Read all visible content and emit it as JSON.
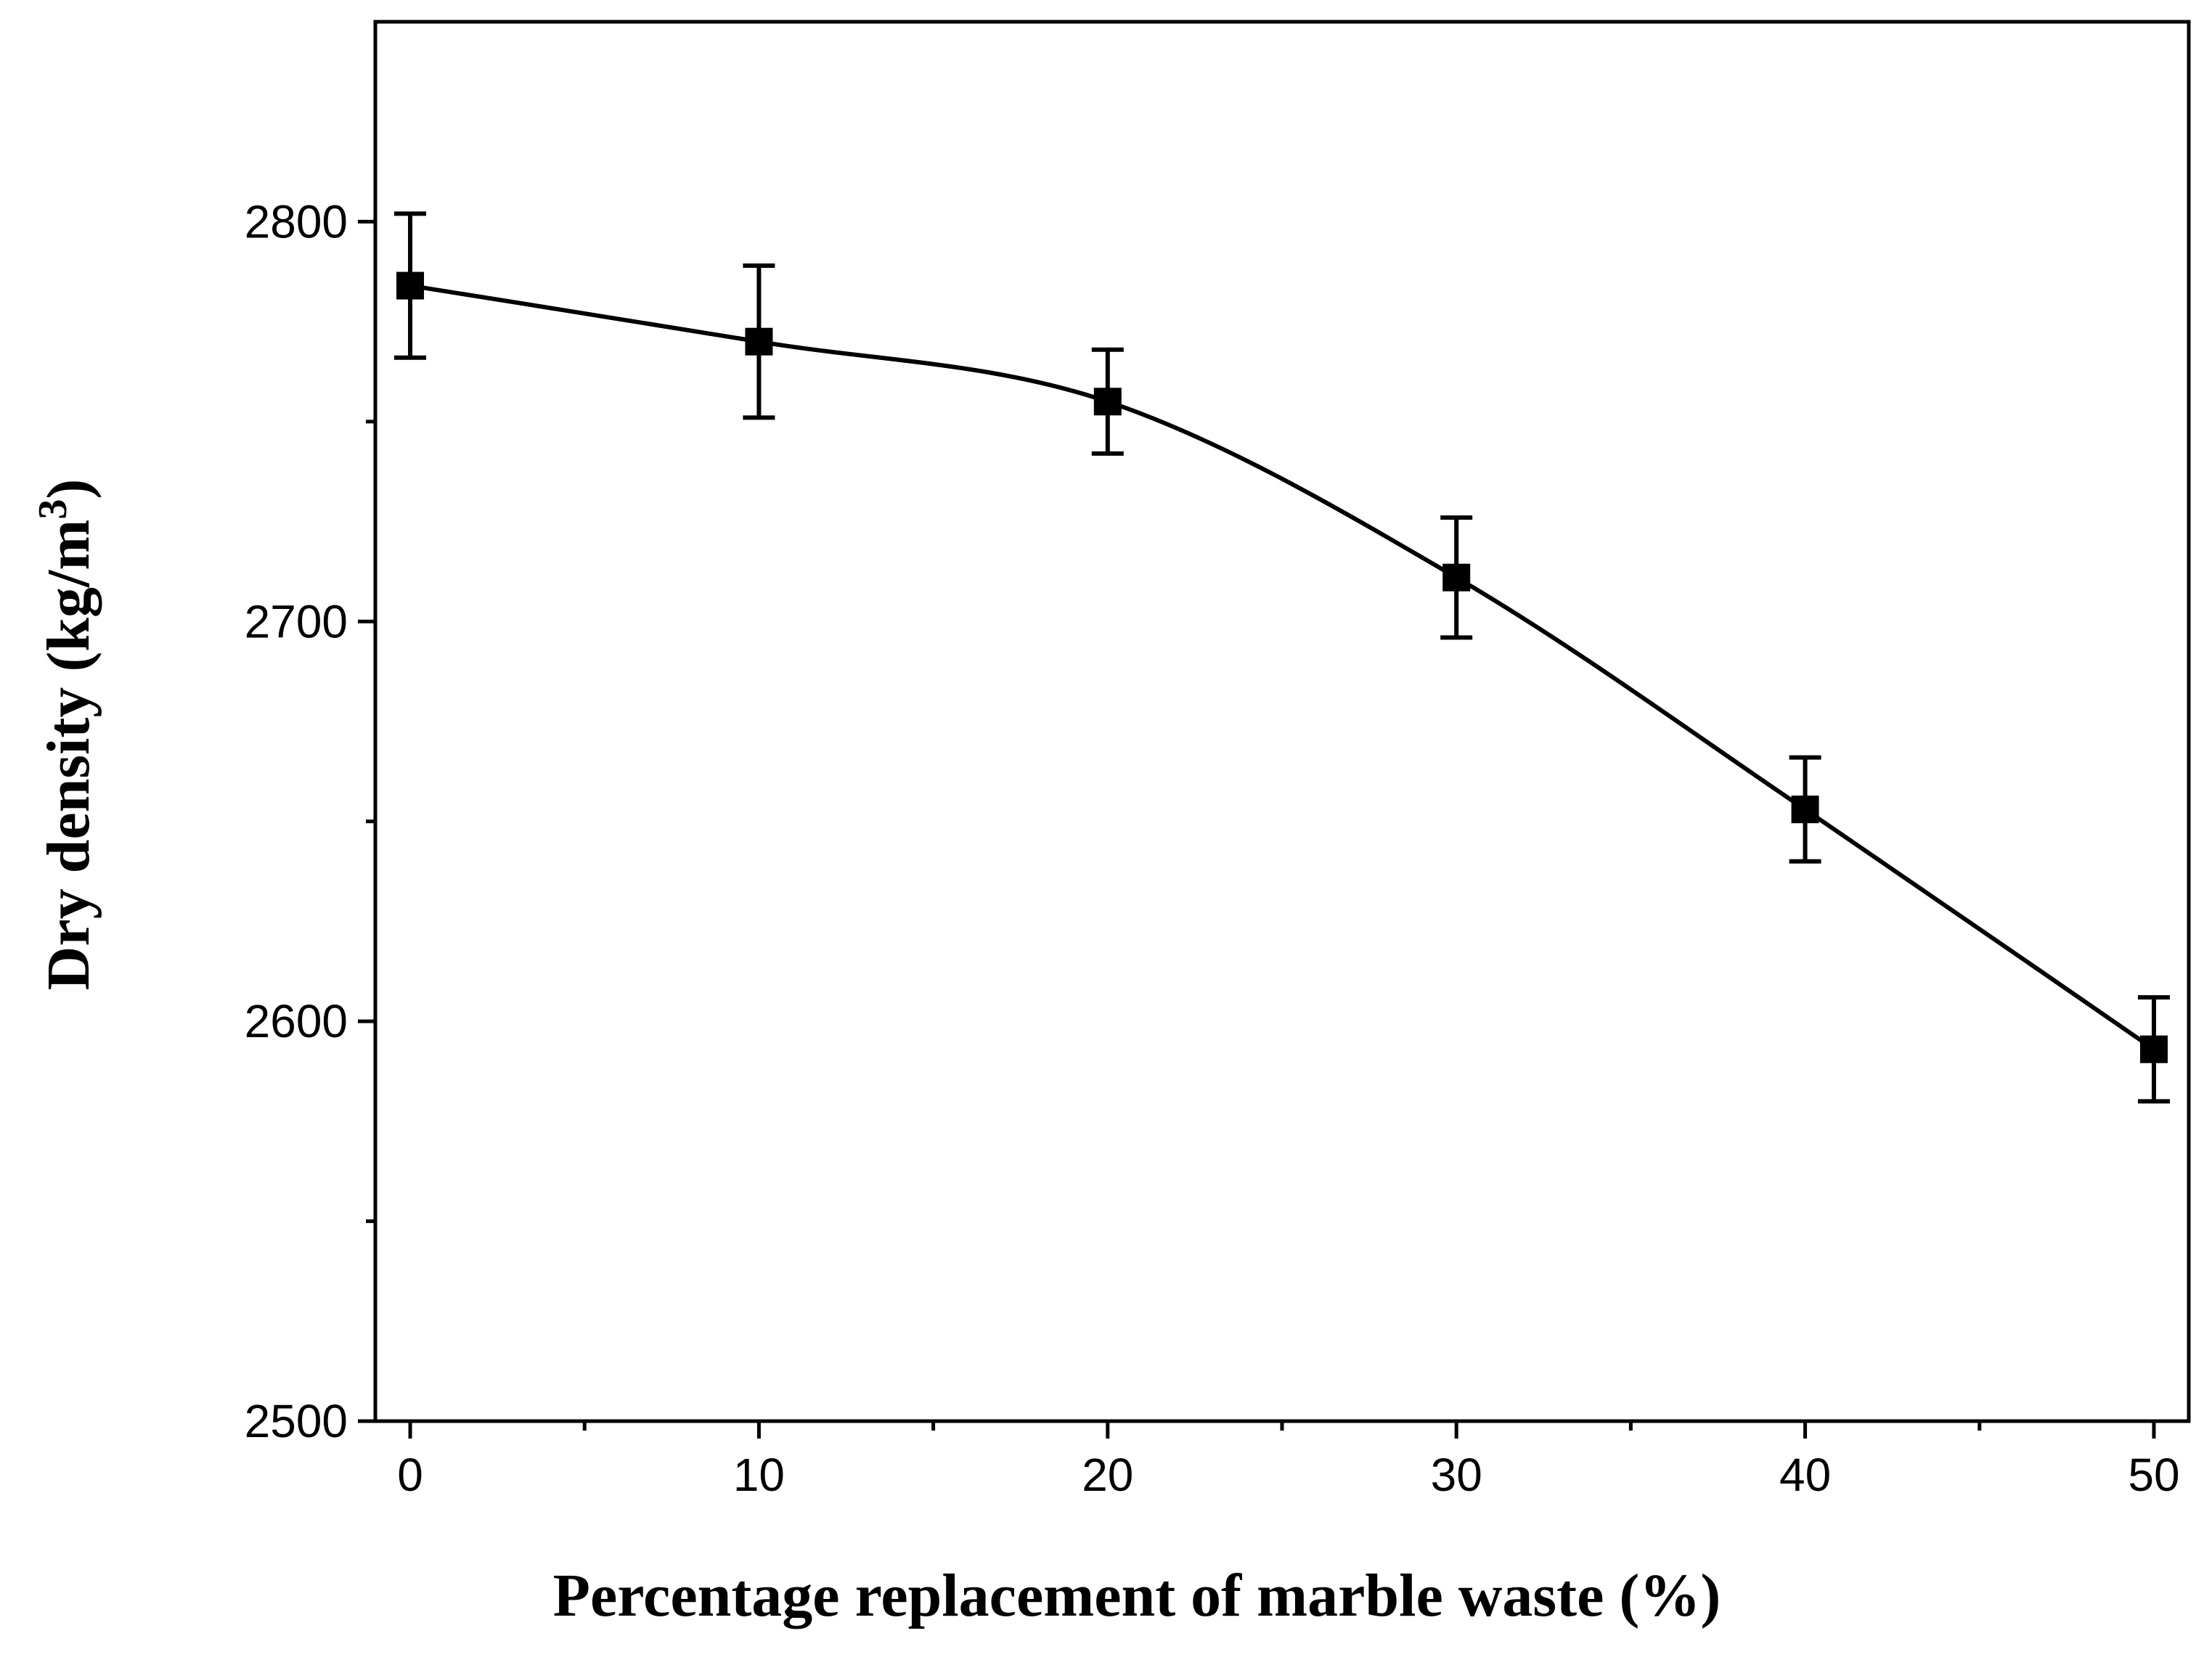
{
  "chart_data": {
    "type": "line",
    "title": "",
    "xlabel": "Percentage replacement of marble waste (%)",
    "ylabel": "Dry density (kg/m",
    "ylabel_superscript": "3",
    "ylabel_suffix": ")",
    "x": [
      0,
      10,
      20,
      30,
      40,
      50
    ],
    "series": [
      {
        "name": "Dry density",
        "values": [
          2784,
          2770,
          2755,
          2711,
          2653,
          2593
        ],
        "errors": [
          18,
          19,
          13,
          15,
          13,
          13
        ],
        "color": "#000000",
        "marker": "square",
        "smooth": true
      }
    ],
    "xlim": [
      -1,
      51
    ],
    "ylim": [
      2500,
      2850
    ],
    "x_ticks": [
      0,
      10,
      20,
      30,
      40,
      50
    ],
    "x_tick_labels": [
      "0",
      "10",
      "20",
      "30",
      "40",
      "50"
    ],
    "x_minor_ticks": [
      5,
      15,
      25,
      35,
      45
    ],
    "y_ticks": [
      2500,
      2600,
      2700,
      2800
    ],
    "y_tick_labels": [
      "2500",
      "2600",
      "2700",
      "2800"
    ],
    "y_minor_ticks": [
      2550,
      2650,
      2750
    ],
    "grid": false,
    "legend": "none"
  }
}
